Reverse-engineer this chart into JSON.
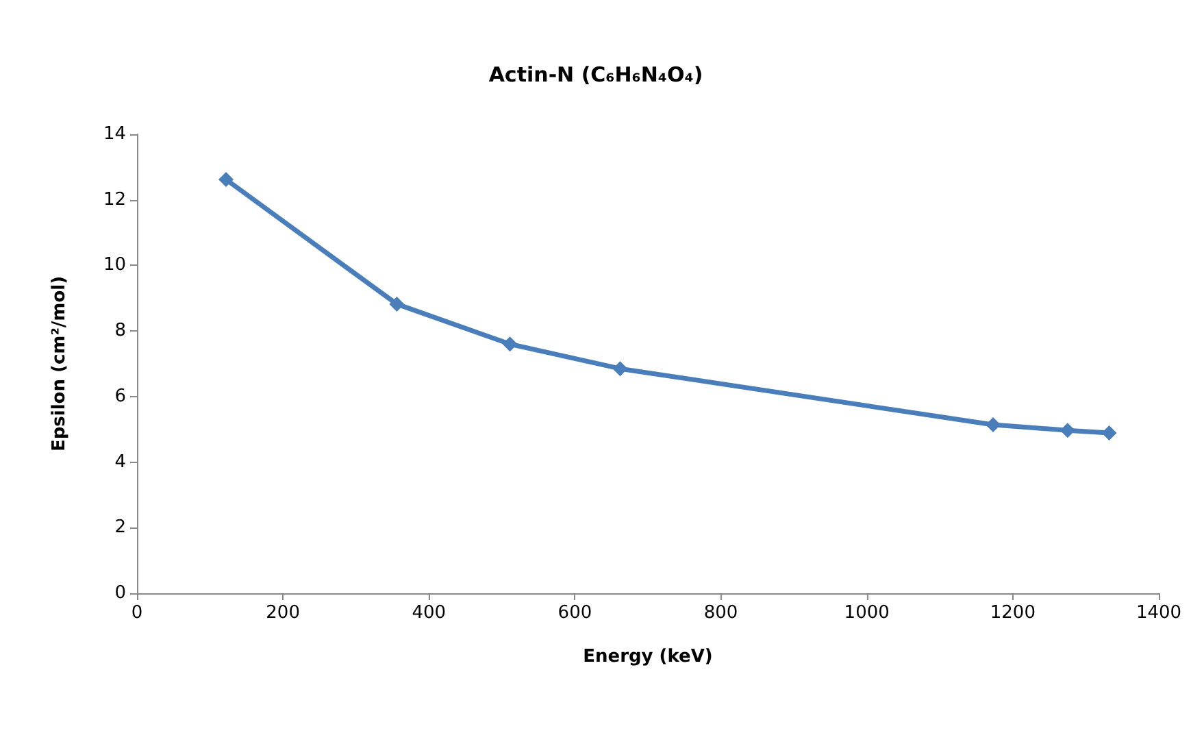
{
  "chart_data": {
    "type": "line",
    "title": "Actin-N (C₆H₆N₄O₄)",
    "xlabel": "Energy (keV)",
    "ylabel": "Epsilon (cm²/mol)",
    "x": [
      122,
      356,
      511,
      662,
      1173,
      1275,
      1332
    ],
    "series": [
      {
        "color": "#4a7ebb",
        "values": [
          12.62,
          8.82,
          7.6,
          6.85,
          5.14,
          4.97,
          4.89
        ]
      }
    ],
    "xlim": [
      0,
      1400
    ],
    "xticks": [
      0,
      200,
      400,
      600,
      800,
      1000,
      1200,
      1400
    ],
    "ylim": [
      0,
      14
    ],
    "yticks": [
      0,
      2,
      4,
      6,
      8,
      10,
      12,
      14
    ],
    "grid": false,
    "marker": "diamond",
    "line_style": "solid"
  }
}
